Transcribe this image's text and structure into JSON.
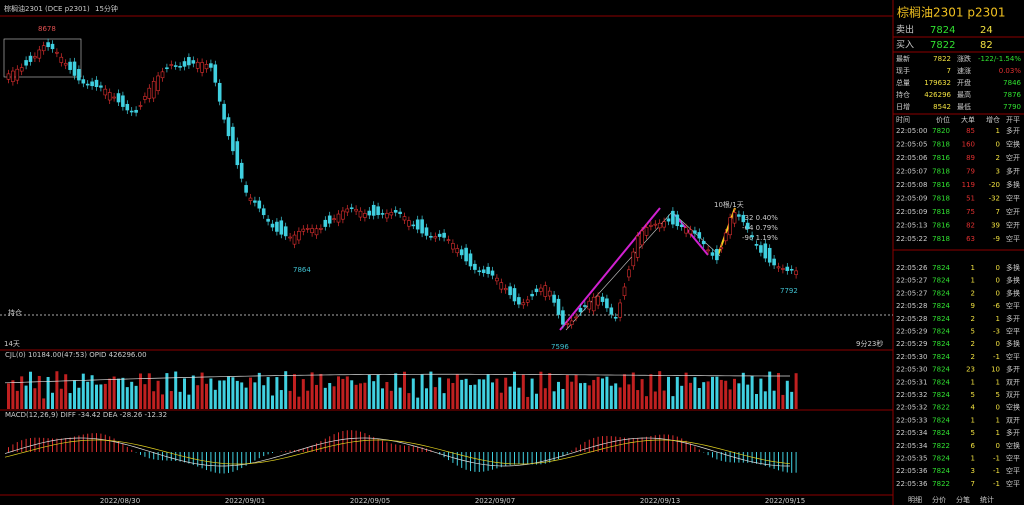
{
  "header": {
    "title": "棕榈油2301 (DCE p2301)",
    "period": "15分钟"
  },
  "chart": {
    "high_label": "8678",
    "low1_label": "7864",
    "low2_label": "7596",
    "last_label": "7792",
    "days": "14天",
    "countdown": "9分23秒",
    "position_label": "持仓",
    "annotations": [
      "10根/1天",
      "-32  0.40%",
      "-64  0.79%",
      "-96  1.19%"
    ],
    "volume_header": "CJL(0)  10184.00(47:53)  OPID 426296.00",
    "macd_header": "MACD(12,26,9)  DIFF -34.42  DEA -28.26  -12.32",
    "dates": [
      "2022/08/30",
      "2022/09/01",
      "2022/09/05",
      "2022/09/07",
      "2022/09/13",
      "2022/09/15"
    ]
  },
  "quote": {
    "title": "棕榈油2301  p2301",
    "book": [
      [
        "卖出",
        "7824",
        "24"
      ],
      [
        "买入",
        "7822",
        "82"
      ]
    ],
    "stats": [
      [
        "最新",
        "7822",
        "涨跌",
        "-122/-1.54%"
      ],
      [
        "现手",
        "7",
        "速涨",
        "0.03%"
      ],
      [
        "总量",
        "179632",
        "开盘",
        "7846"
      ],
      [
        "持仓",
        "426296",
        "最高",
        "7876"
      ],
      [
        "日增",
        "8542",
        "最低",
        "7790"
      ]
    ],
    "columns": [
      "时间",
      "价位",
      "大单",
      "增仓",
      "开平"
    ],
    "big_trades": [
      [
        "22:05:00",
        "7820",
        "85",
        "1",
        "多开"
      ],
      [
        "22:05:05",
        "7818",
        "160",
        "0",
        "空换"
      ],
      [
        "22:05:06",
        "7816",
        "89",
        "2",
        "空开"
      ],
      [
        "22:05:07",
        "7818",
        "79",
        "3",
        "多开"
      ],
      [
        "22:05:08",
        "7816",
        "119",
        "-20",
        "多换"
      ],
      [
        "22:05:09",
        "7818",
        "51",
        "-32",
        "空平"
      ],
      [
        "22:05:09",
        "7818",
        "75",
        "7",
        "空开"
      ],
      [
        "22:05:13",
        "7816",
        "82",
        "39",
        "空开"
      ],
      [
        "22:05:22",
        "7818",
        "63",
        "-9",
        "空平"
      ]
    ],
    "trades": [
      [
        "22:05:26",
        "7824",
        "1",
        "0",
        "多换"
      ],
      [
        "22:05:27",
        "7824",
        "1",
        "0",
        "多换"
      ],
      [
        "22:05:27",
        "7824",
        "2",
        "0",
        "多换"
      ],
      [
        "22:05:28",
        "7824",
        "9",
        "-6",
        "空平"
      ],
      [
        "22:05:28",
        "7824",
        "2",
        "1",
        "多开"
      ],
      [
        "22:05:29",
        "7824",
        "5",
        "-3",
        "空平"
      ],
      [
        "22:05:29",
        "7824",
        "2",
        "0",
        "多换"
      ],
      [
        "22:05:30",
        "7824",
        "2",
        "-1",
        "空平"
      ],
      [
        "22:05:30",
        "7824",
        "23",
        "10",
        "多开"
      ],
      [
        "22:05:31",
        "7824",
        "1",
        "1",
        "双开"
      ],
      [
        "22:05:32",
        "7824",
        "5",
        "5",
        "双开"
      ],
      [
        "22:05:32",
        "7822",
        "4",
        "0",
        "空换"
      ],
      [
        "22:05:33",
        "7824",
        "1",
        "1",
        "双开"
      ],
      [
        "22:05:34",
        "7824",
        "5",
        "1",
        "多开"
      ],
      [
        "22:05:34",
        "7822",
        "6",
        "0",
        "空换"
      ],
      [
        "22:05:35",
        "7824",
        "1",
        "-1",
        "空平"
      ],
      [
        "22:05:36",
        "7824",
        "3",
        "-1",
        "空平"
      ],
      [
        "22:05:36",
        "7822",
        "7",
        "-1",
        "空平"
      ]
    ],
    "tabs": [
      "明细",
      "分价",
      "分笔",
      "统计"
    ]
  }
}
